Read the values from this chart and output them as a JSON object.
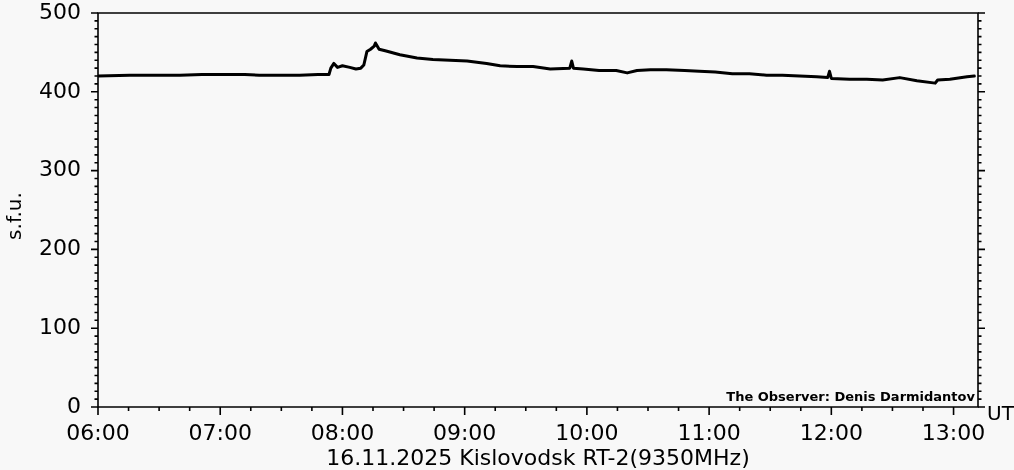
{
  "chart_data": {
    "type": "line",
    "title": "16.11.2025 Kislovodsk RT-2(9350MHz)",
    "xlabel": "UT",
    "ylabel": "s.f.u.",
    "annotations": [
      "The Observer: Denis Darmidantov"
    ],
    "x": [
      6.0,
      6.26,
      6.5,
      6.67,
      6.85,
      7.0,
      7.2,
      7.32,
      7.5,
      7.65,
      7.8,
      7.89,
      7.905,
      7.93,
      7.96,
      8.0,
      8.06,
      8.11,
      8.15,
      8.175,
      8.2,
      8.23,
      8.26,
      8.27,
      8.3,
      8.35,
      8.47,
      8.61,
      8.74,
      8.88,
      9.02,
      9.18,
      9.29,
      9.43,
      9.56,
      9.7,
      9.86,
      9.876,
      9.89,
      9.97,
      10.1,
      10.24,
      10.33,
      10.41,
      10.52,
      10.65,
      10.8,
      10.92,
      11.05,
      11.19,
      11.33,
      11.47,
      11.6,
      11.74,
      11.88,
      11.97,
      11.985,
      12.0,
      12.15,
      12.29,
      12.42,
      12.56,
      12.7,
      12.85,
      12.87,
      12.97,
      13.11,
      13.17
    ],
    "series": [
      {
        "color": "#000000",
        "values": [
          420,
          421,
          421,
          421,
          422,
          422,
          422,
          421,
          421,
          421,
          422,
          422,
          430,
          436,
          431,
          433,
          431,
          429,
          430,
          434,
          451,
          454,
          458,
          462,
          454,
          452,
          447,
          443,
          441,
          440,
          439,
          436,
          433,
          432,
          432,
          429,
          430,
          439,
          430,
          429,
          427,
          427,
          424,
          427,
          428,
          428,
          427,
          426,
          425,
          423,
          423,
          421,
          421,
          420,
          419,
          418,
          426,
          417,
          416,
          416,
          415,
          418,
          414,
          411,
          415,
          416,
          419,
          420
        ]
      }
    ],
    "xlim": [
      6,
      13.2
    ],
    "xticks": [
      {
        "value": 6,
        "label": "06:00"
      },
      {
        "value": 6.25,
        "label": null
      },
      {
        "value": 6.5,
        "label": null
      },
      {
        "value": 6.75,
        "label": null
      },
      {
        "value": 7,
        "label": "07:00"
      },
      {
        "value": 7.25,
        "label": null
      },
      {
        "value": 7.5,
        "label": null
      },
      {
        "value": 7.75,
        "label": null
      },
      {
        "value": 8,
        "label": "08:00"
      },
      {
        "value": 8.25,
        "label": null
      },
      {
        "value": 8.5,
        "label": null
      },
      {
        "value": 8.75,
        "label": null
      },
      {
        "value": 9,
        "label": "09:00"
      },
      {
        "value": 9.25,
        "label": null
      },
      {
        "value": 9.5,
        "label": null
      },
      {
        "value": 9.75,
        "label": null
      },
      {
        "value": 10,
        "label": "10:00"
      },
      {
        "value": 10.25,
        "label": null
      },
      {
        "value": 10.5,
        "label": null
      },
      {
        "value": 10.75,
        "label": null
      },
      {
        "value": 11,
        "label": "11:00"
      },
      {
        "value": 11.25,
        "label": null
      },
      {
        "value": 11.5,
        "label": null
      },
      {
        "value": 11.75,
        "label": null
      },
      {
        "value": 12,
        "label": "12:00"
      },
      {
        "value": 12.25,
        "label": null
      },
      {
        "value": 12.5,
        "label": null
      },
      {
        "value": 12.75,
        "label": null
      },
      {
        "value": 13,
        "label": "13:00"
      }
    ],
    "ylim": [
      0,
      500
    ],
    "yticks": [
      0,
      {
        "value": 10,
        "label": null
      },
      {
        "value": 20,
        "label": null
      },
      {
        "value": 30,
        "label": null
      },
      {
        "value": 40,
        "label": null
      },
      {
        "value": 50,
        "label": null
      },
      {
        "value": 60,
        "label": null
      },
      {
        "value": 70,
        "label": null
      },
      {
        "value": 80,
        "label": null
      },
      {
        "value": 90,
        "label": null
      },
      100,
      {
        "value": 110,
        "label": null
      },
      {
        "value": 120,
        "label": null
      },
      {
        "value": 130,
        "label": null
      },
      {
        "value": 140,
        "label": null
      },
      {
        "value": 150,
        "label": null
      },
      {
        "value": 160,
        "label": null
      },
      {
        "value": 170,
        "label": null
      },
      {
        "value": 180,
        "label": null
      },
      {
        "value": 190,
        "label": null
      },
      200,
      {
        "value": 210,
        "label": null
      },
      {
        "value": 220,
        "label": null
      },
      {
        "value": 230,
        "label": null
      },
      {
        "value": 240,
        "label": null
      },
      {
        "value": 250,
        "label": null
      },
      {
        "value": 260,
        "label": null
      },
      {
        "value": 270,
        "label": null
      },
      {
        "value": 280,
        "label": null
      },
      {
        "value": 290,
        "label": null
      },
      300,
      {
        "value": 310,
        "label": null
      },
      {
        "value": 320,
        "label": null
      },
      {
        "value": 330,
        "label": null
      },
      {
        "value": 340,
        "label": null
      },
      {
        "value": 350,
        "label": null
      },
      {
        "value": 360,
        "label": null
      },
      {
        "value": 370,
        "label": null
      },
      {
        "value": 380,
        "label": null
      },
      {
        "value": 390,
        "label": null
      },
      400,
      {
        "value": 410,
        "label": null
      },
      {
        "value": 420,
        "label": null
      },
      {
        "value": 430,
        "label": null
      },
      {
        "value": 440,
        "label": null
      },
      {
        "value": 450,
        "label": null
      },
      {
        "value": 460,
        "label": null
      },
      {
        "value": 470,
        "label": null
      },
      {
        "value": 480,
        "label": null
      },
      {
        "value": 490,
        "label": null
      },
      500
    ]
  }
}
